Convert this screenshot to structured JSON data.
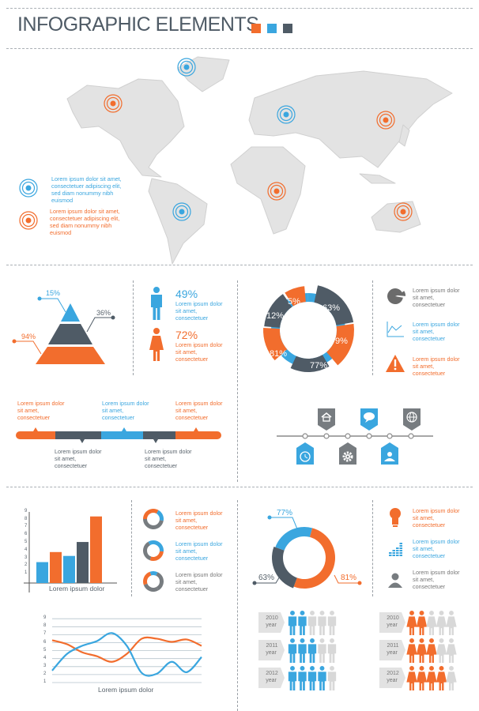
{
  "header": {
    "title": "INFOGRAPHIC ELEMENTS",
    "color_squares": [
      "#f26d2d",
      "#3aa6df",
      "#4f5b66"
    ]
  },
  "colors": {
    "orange": "#f26d2d",
    "blue": "#3aa6df",
    "dark": "#4f5b66",
    "gray": "#d6d6d6",
    "map": "#e4e4e4"
  },
  "map": {
    "markers": [
      {
        "color": "blue",
        "place": "Greenland"
      },
      {
        "color": "blue",
        "place": "Europe"
      },
      {
        "color": "blue",
        "place": "South America"
      },
      {
        "color": "orange",
        "place": "North America"
      },
      {
        "color": "orange",
        "place": "East Asia"
      },
      {
        "color": "orange",
        "place": "Africa"
      },
      {
        "color": "orange",
        "place": "Australia"
      }
    ],
    "legend": [
      {
        "color": "blue",
        "text": "Lorem ipsum dolor sit amet,\nconsectetuer adipiscing elit,\nsed diam nonummy nibh\neuismod"
      },
      {
        "color": "orange",
        "text": "Lorem ipsum dolor sit amet,\nconsectetuer adipiscing elit,\nsed diam nonummy nibh\neuismod"
      }
    ]
  },
  "pyramid": {
    "top": "15%",
    "middle": "36%",
    "bottom": "94%"
  },
  "gender": {
    "male": {
      "value": "49%",
      "text": "Lorem ipsum dolor\nsit amet,\nconsectetuer"
    },
    "female": {
      "value": "72%",
      "text": "Lorem ipsum dolor\nsit amet,\nconsectetuer"
    }
  },
  "timeline": {
    "above": [
      {
        "color": "orange",
        "text": "Lorem ipsum dolor\nsit amet,\nconsectetuer"
      },
      {
        "color": "blue",
        "text": "Lorem ipsum dolor\nsit amet,\nconsectetuer"
      },
      {
        "color": "orange",
        "text": "Lorem ipsum dolor\nsit amet,\nconsectetuer"
      }
    ],
    "below": [
      {
        "color": "dark",
        "text": "Lorem ipsum dolor\nsit amet,\nconsectetuer"
      },
      {
        "color": "dark",
        "text": "Lorem ipsum dolor\nsit amet,\nconsectetuer"
      }
    ]
  },
  "ring_chart": {
    "labels": [
      "12%",
      "5%",
      "63%",
      "9%",
      "77%",
      "81%"
    ]
  },
  "info_icons_top": [
    {
      "icon": "pie-chart-icon",
      "color": "gray",
      "text": "Lorem ipsum dolor\nsit amet,\nconsectetuer"
    },
    {
      "icon": "line-chart-icon",
      "color": "blue",
      "text": "Lorem ipsum dolor\nsit amet,\nconsectetuer"
    },
    {
      "icon": "warning-icon",
      "color": "orange",
      "text": "Lorem ipsum dolor\nsit amet,\nconsectetuer"
    }
  ],
  "icon_timeline": {
    "top": [
      "home-icon",
      "speech-bubble-icon",
      "globe-icon"
    ],
    "bottom": [
      "clock-icon",
      "gear-icon",
      "user-icon"
    ]
  },
  "small_donuts": [
    {
      "color": "orange",
      "text": "Lorem ipsum dolor\nsit amet,\nconsectetuer"
    },
    {
      "color": "blue",
      "text": "Lorem ipsum dolor\nsit amet,\nconsectetuer"
    },
    {
      "color": "gray",
      "text": "Lorem ipsum dolor\nsit amet,\nconsectetuer"
    }
  ],
  "half_donut": {
    "blue": "77%",
    "dark": "63%",
    "orange": "81%"
  },
  "info_icons_bottom": [
    {
      "icon": "light-bulb-icon",
      "color": "orange",
      "text": "Lorem ipsum dolor\nsit amet,\nconsectetuer"
    },
    {
      "icon": "bar-levels-icon",
      "color": "blue",
      "text": "Lorem ipsum dolor\nsit amet,\nconsectetuer"
    },
    {
      "icon": "person-icon",
      "color": "gray",
      "text": "Lorem ipsum dolor\nsit amet,\nconsectetuer"
    }
  ],
  "people_stats": {
    "total": 5,
    "men": [
      {
        "year": "2010",
        "unit": "year",
        "filled": 2
      },
      {
        "year": "2011",
        "unit": "year",
        "filled": 3
      },
      {
        "year": "2012",
        "unit": "year",
        "filled": 4
      }
    ],
    "women": [
      {
        "year": "2010",
        "unit": "year",
        "filled": 2
      },
      {
        "year": "2011",
        "unit": "year",
        "filled": 3
      },
      {
        "year": "2012",
        "unit": "year",
        "filled": 4
      }
    ]
  },
  "chart_data": [
    {
      "type": "bar",
      "xlabel": "Lorem ipsum dolor",
      "yticks": [
        "1",
        "2",
        "3",
        "4",
        "5",
        "6",
        "7",
        "8",
        "9"
      ],
      "ylim": [
        0,
        9
      ],
      "values": [
        2.7,
        4.0,
        3.5,
        5.3,
        8.6
      ],
      "colors": [
        "#3aa6df",
        "#f26d2d",
        "#3aa6df",
        "#4f5b66",
        "#f26d2d"
      ]
    },
    {
      "type": "line",
      "xlabel": "Lorem ipsum dolor",
      "yticks": [
        "1",
        "2",
        "3",
        "4",
        "5",
        "6",
        "7",
        "8",
        "9"
      ],
      "ylim": [
        1,
        9
      ],
      "grid": true,
      "series": [
        {
          "color": "#f26d2d",
          "values": [
            6.3,
            5.8,
            4.8,
            4.3,
            3.6,
            4.6,
            6.5,
            6.5,
            6.1,
            6.4,
            5.6
          ]
        },
        {
          "color": "#3aa6df",
          "values": [
            2.5,
            4.6,
            5.6,
            6.2,
            7.2,
            5.6,
            2.2,
            2.1,
            3.6,
            2.3,
            4.2
          ]
        }
      ]
    }
  ]
}
